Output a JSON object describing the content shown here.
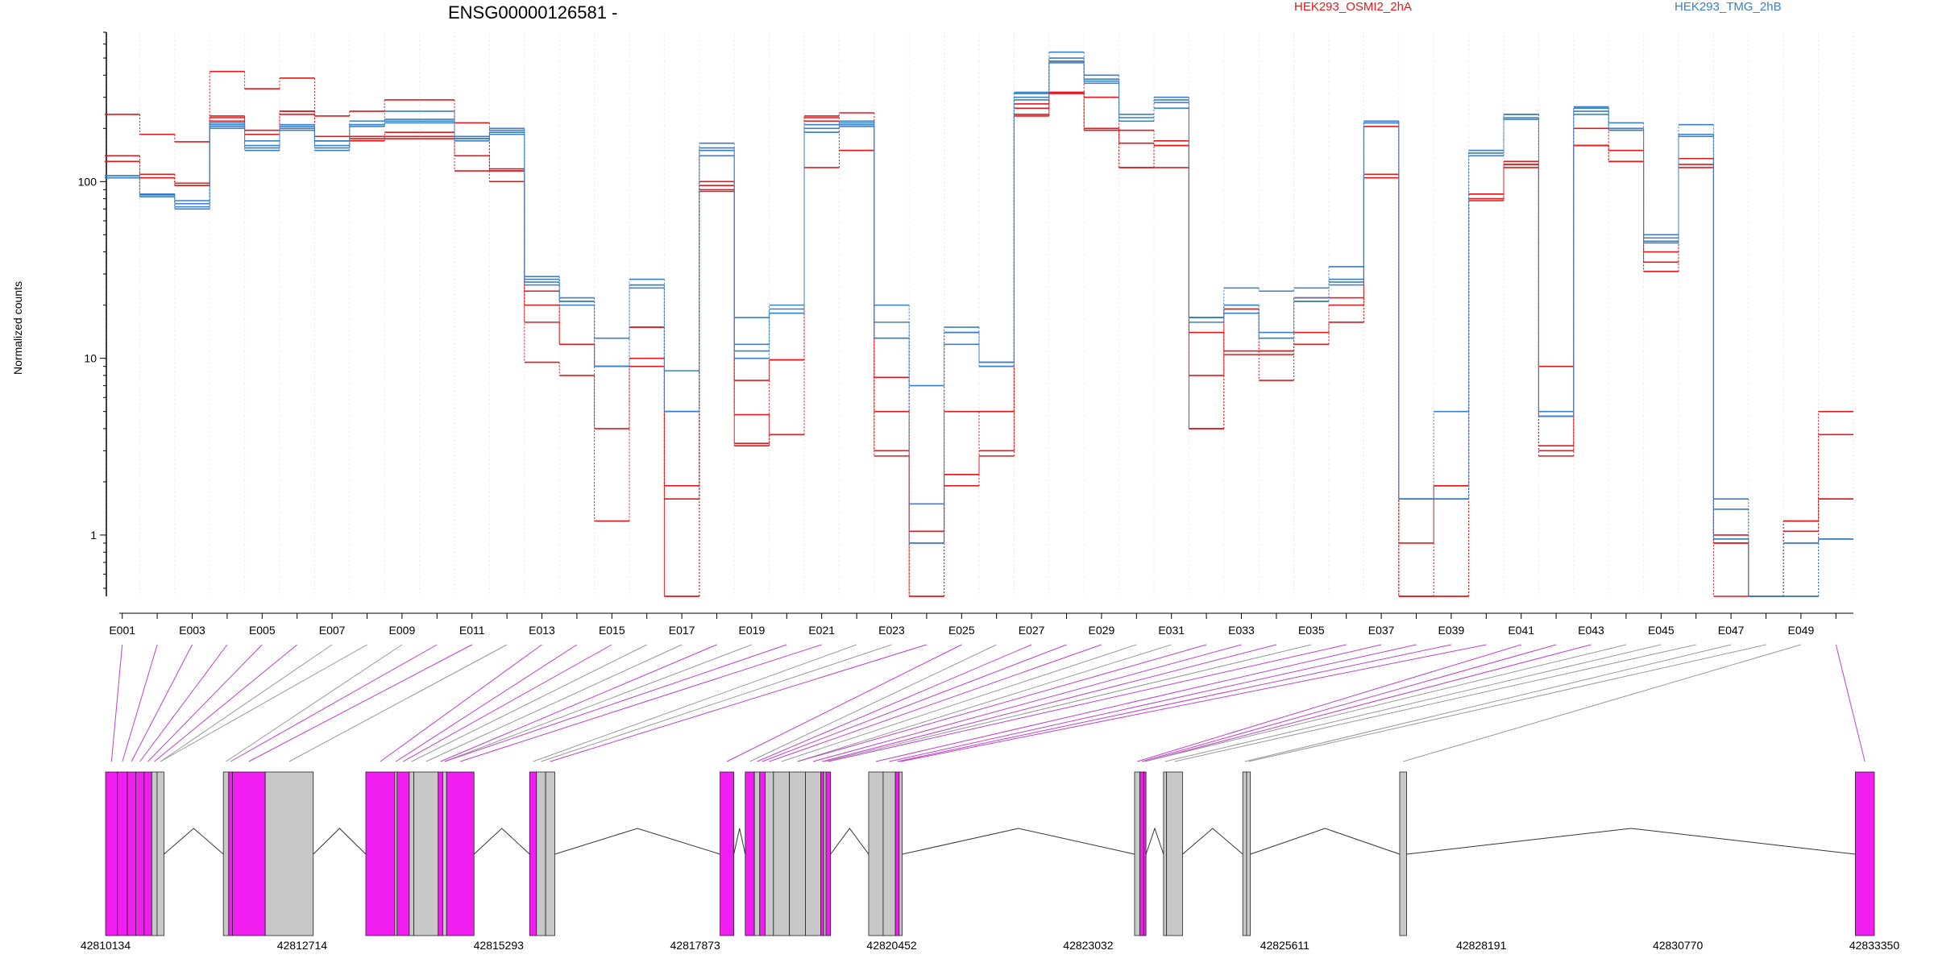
{
  "chart_data": {
    "type": "line",
    "title": "ENSG00000126581 -",
    "ylabel": "Normalized counts",
    "y_scale": "log",
    "ylim": [
      0.45,
      700
    ],
    "y_ticks": [
      1,
      10,
      100
    ],
    "y_tick_labels": [
      "1",
      "10",
      "100"
    ],
    "grid": "vertical, light dotted",
    "legend_placement": "top, horizontal",
    "colors": {
      "HEK293_OSMI2_2hA": "#e31a1c",
      "HEK293_TMG_2hB": "#3b7fc4",
      "included_exon": "#f01ef0",
      "other_exon": "#c8c8c8"
    },
    "legend": [
      {
        "name": "HEK293_OSMI2_2hA",
        "color": "#e31a1c"
      },
      {
        "name": "HEK293_TMG_2hB",
        "color": "#3b7fc4"
      }
    ],
    "x_labels": [
      "E001",
      "E003",
      "E005",
      "E007",
      "E009",
      "E011",
      "E013",
      "E015",
      "E017",
      "E019",
      "E021",
      "E023",
      "E025",
      "E027",
      "E029",
      "E031",
      "E033",
      "E035",
      "E037",
      "E039",
      "E041",
      "E043",
      "E045",
      "E047",
      "E049"
    ],
    "series": [
      {
        "group": "HEK293_OSMI2_2hA",
        "color": "#e31a1c",
        "values": [
          240,
          185,
          168,
          420,
          335,
          385,
          235,
          250,
          290,
          290,
          215,
          118,
          9.5,
          8,
          1.2,
          9,
          0.45,
          100,
          3.3,
          9.8,
          235,
          245,
          3,
          0.45,
          2.2,
          3,
          240,
          315,
          300,
          195,
          160,
          4,
          10.5,
          7.5,
          12,
          16,
          205,
          0.45,
          0.45,
          78,
          120,
          3,
          160,
          130,
          31,
          125,
          0.45,
          0.45,
          0.45,
          1.6
        ]
      },
      {
        "group": "HEK293_OSMI2_2hA",
        "color": "#e31a1c",
        "values": [
          140,
          110,
          98,
          235,
          195,
          250,
          170,
          180,
          180,
          180,
          140,
          115,
          16,
          12,
          4,
          10,
          0.45,
          95,
          7.5,
          9.8,
          120,
          150,
          5,
          1.05,
          2.2,
          5,
          275,
          320,
          200,
          165,
          120,
          14,
          11,
          10.5,
          14,
          20,
          110,
          0.9,
          1.9,
          85,
          125,
          3.2,
          200,
          150,
          35,
          135,
          0.9,
          0.45,
          1.2,
          1.6
        ]
      },
      {
        "group": "HEK293_OSMI2_2hA",
        "color": "#e31a1c",
        "values": [
          140,
          110,
          95,
          230,
          185,
          250,
          180,
          175,
          190,
          190,
          175,
          100,
          20,
          12,
          9,
          15,
          1.9,
          88,
          4.8,
          3.7,
          220,
          220,
          7.8,
          1.05,
          5,
          5,
          235,
          480,
          195,
          120,
          160,
          8,
          19,
          11,
          22,
          22,
          105,
          0.45,
          0.45,
          80,
          130,
          9,
          160,
          130,
          40,
          135,
          0.9,
          0.45,
          1.05,
          5
        ]
      },
      {
        "group": "HEK293_OSMI2_2hA",
        "color": "#e31a1c",
        "values": [
          130,
          105,
          95,
          220,
          185,
          240,
          170,
          170,
          175,
          175,
          115,
          115,
          24,
          12,
          9,
          15,
          1.6,
          90,
          3.2,
          3.7,
          230,
          150,
          2.8,
          0.45,
          1.9,
          2.8,
          260,
          320,
          195,
          120,
          170,
          4,
          19,
          11,
          12,
          16,
          110,
          0.45,
          1.9,
          85,
          125,
          2.8,
          160,
          130,
          31,
          120,
          1,
          0.45,
          1.2,
          3.7
        ]
      },
      {
        "group": "HEK293_TMG_2hB",
        "color": "#3b7fc4",
        "values": [
          105,
          85,
          70,
          210,
          170,
          210,
          170,
          220,
          250,
          250,
          180,
          200,
          29,
          21,
          13,
          28,
          5,
          165,
          17,
          20,
          190,
          220,
          20,
          7,
          15,
          9.5,
          320,
          540,
          400,
          220,
          260,
          17,
          25,
          24,
          25,
          33,
          215,
          1.6,
          5,
          150,
          240,
          5,
          260,
          215,
          50,
          210,
          1.6,
          0.45,
          0.45,
          0.95
        ]
      },
      {
        "group": "HEK293_TMG_2hB",
        "color": "#3b7fc4",
        "values": [
          108,
          85,
          75,
          215,
          160,
          205,
          160,
          210,
          225,
          225,
          180,
          195,
          27,
          22,
          9,
          26,
          8.5,
          155,
          11,
          19,
          210,
          215,
          16,
          1.5,
          12,
          9.5,
          315,
          480,
          380,
          240,
          300,
          17,
          20,
          14,
          22,
          28,
          220,
          1.6,
          1.6,
          145,
          225,
          4.7,
          265,
          200,
          45,
          185,
          1.4,
          0.45,
          0.45,
          0.95
        ]
      },
      {
        "group": "HEK293_TMG_2hB",
        "color": "#3b7fc4",
        "values": [
          108,
          82,
          78,
          205,
          155,
          200,
          155,
          210,
          220,
          220,
          170,
          190,
          28,
          21,
          9,
          25,
          5,
          140,
          10,
          18,
          190,
          210,
          13,
          0.9,
          14,
          9,
          300,
          470,
          360,
          220,
          280,
          16,
          18,
          13,
          21,
          26,
          215,
          1.6,
          1.6,
          140,
          240,
          4.7,
          240,
          195,
          48,
          180,
          0.95,
          0.45,
          0.9,
          0.95
        ]
      },
      {
        "group": "HEK293_TMG_2hB",
        "color": "#3b7fc4",
        "values": [
          105,
          84,
          72,
          200,
          150,
          195,
          150,
          205,
          215,
          215,
          175,
          185,
          26,
          20,
          9,
          26,
          5,
          150,
          12,
          18,
          200,
          205,
          13,
          0.9,
          14,
          9,
          290,
          500,
          370,
          230,
          290,
          17,
          20,
          13,
          21,
          27,
          220,
          1.6,
          1.6,
          150,
          230,
          4.7,
          250,
          200,
          46,
          185,
          0.95,
          0.45,
          0.9,
          0.95
        ]
      }
    ],
    "gene_model": {
      "coord_labels": [
        "42810134",
        "42812714",
        "42815293",
        "42817873",
        "42820452",
        "42823032",
        "42825611",
        "42828191",
        "42830770",
        "42833350"
      ],
      "coord_min": 42810134,
      "coord_max": 42833350,
      "exons": [
        {
          "start": 42810134,
          "end": 42810290,
          "included": true
        },
        {
          "start": 42810290,
          "end": 42810420,
          "included": true
        },
        {
          "start": 42810420,
          "end": 42810530,
          "included": true
        },
        {
          "start": 42810530,
          "end": 42810640,
          "included": true
        },
        {
          "start": 42810640,
          "end": 42810740,
          "included": true
        },
        {
          "start": 42810740,
          "end": 42810810,
          "included": false
        },
        {
          "start": 42810810,
          "end": 42810900,
          "included": false
        },
        {
          "start": 42811680,
          "end": 42811750,
          "included": false
        },
        {
          "start": 42811750,
          "end": 42811800,
          "included": true
        },
        {
          "start": 42811800,
          "end": 42812230,
          "included": true
        },
        {
          "start": 42812230,
          "end": 42812860,
          "included": false
        },
        {
          "start": 42813550,
          "end": 42813930,
          "included": true
        },
        {
          "start": 42813930,
          "end": 42813960,
          "included": false
        },
        {
          "start": 42813960,
          "end": 42814120,
          "included": true
        },
        {
          "start": 42814120,
          "end": 42814180,
          "included": false
        },
        {
          "start": 42814180,
          "end": 42814500,
          "included": false
        },
        {
          "start": 42814500,
          "end": 42814560,
          "included": true
        },
        {
          "start": 42814560,
          "end": 42814610,
          "included": false
        },
        {
          "start": 42814610,
          "end": 42814970,
          "included": true
        },
        {
          "start": 42815700,
          "end": 42815790,
          "included": true
        },
        {
          "start": 42815790,
          "end": 42815910,
          "included": false
        },
        {
          "start": 42815910,
          "end": 42816030,
          "included": false
        },
        {
          "start": 42818200,
          "end": 42818380,
          "included": true
        },
        {
          "start": 42818530,
          "end": 42818650,
          "included": true
        },
        {
          "start": 42818650,
          "end": 42818720,
          "included": false
        },
        {
          "start": 42818720,
          "end": 42818790,
          "included": true
        },
        {
          "start": 42818790,
          "end": 42818900,
          "included": false
        },
        {
          "start": 42818900,
          "end": 42819110,
          "included": false
        },
        {
          "start": 42819110,
          "end": 42819320,
          "included": false
        },
        {
          "start": 42819320,
          "end": 42819520,
          "included": false
        },
        {
          "start": 42819520,
          "end": 42819560,
          "included": true
        },
        {
          "start": 42819560,
          "end": 42819590,
          "included": false
        },
        {
          "start": 42819590,
          "end": 42819650,
          "included": true
        },
        {
          "start": 42820150,
          "end": 42820340,
          "included": false
        },
        {
          "start": 42820340,
          "end": 42820500,
          "included": false
        },
        {
          "start": 42820500,
          "end": 42820550,
          "included": true
        },
        {
          "start": 42820550,
          "end": 42820590,
          "included": false
        },
        {
          "start": 42823640,
          "end": 42823710,
          "included": false
        },
        {
          "start": 42823710,
          "end": 42823760,
          "included": true
        },
        {
          "start": 42823760,
          "end": 42823790,
          "included": true
        },
        {
          "start": 42824020,
          "end": 42824060,
          "included": false
        },
        {
          "start": 42824060,
          "end": 42824270,
          "included": false
        },
        {
          "start": 42825060,
          "end": 42825110,
          "included": false
        },
        {
          "start": 42825110,
          "end": 42825160,
          "included": false
        },
        {
          "start": 42827120,
          "end": 42827210,
          "included": false
        },
        {
          "start": 42833100,
          "end": 42833350,
          "included": true
        }
      ],
      "exon_to_bin_links": [
        {
          "bin": 1,
          "included": true
        },
        {
          "bin": 2,
          "included": true
        },
        {
          "bin": 3,
          "included": true
        },
        {
          "bin": 4,
          "included": true
        },
        {
          "bin": 5,
          "included": true
        },
        {
          "bin": 6,
          "included": true
        },
        {
          "bin": 7,
          "included": false
        },
        {
          "bin": 8,
          "included": false
        },
        {
          "bin": 9,
          "included": false
        },
        {
          "bin": 10,
          "included": true
        },
        {
          "bin": 11,
          "included": true
        },
        {
          "bin": 12,
          "included": false
        },
        {
          "bin": 13,
          "included": true
        },
        {
          "bin": 14,
          "included": true
        },
        {
          "bin": 15,
          "included": true
        },
        {
          "bin": 16,
          "included": false
        },
        {
          "bin": 17,
          "included": false
        },
        {
          "bin": 18,
          "included": true
        },
        {
          "bin": 19,
          "included": false
        },
        {
          "bin": 20,
          "included": true
        },
        {
          "bin": 21,
          "included": true
        },
        {
          "bin": 22,
          "included": false
        },
        {
          "bin": 23,
          "included": false
        },
        {
          "bin": 24,
          "included": true
        },
        {
          "bin": 25,
          "included": true
        },
        {
          "bin": 26,
          "included": false
        },
        {
          "bin": 27,
          "included": true
        },
        {
          "bin": 28,
          "included": true
        },
        {
          "bin": 29,
          "included": true
        },
        {
          "bin": 30,
          "included": false
        },
        {
          "bin": 31,
          "included": false
        },
        {
          "bin": 32,
          "included": true
        },
        {
          "bin": 33,
          "included": true
        },
        {
          "bin": 34,
          "included": true
        },
        {
          "bin": 35,
          "included": false
        },
        {
          "bin": 36,
          "included": true
        },
        {
          "bin": 37,
          "included": true
        },
        {
          "bin": 38,
          "included": true
        },
        {
          "bin": 39,
          "included": true
        },
        {
          "bin": 40,
          "included": true
        },
        {
          "bin": 41,
          "included": true
        },
        {
          "bin": 42,
          "included": true
        },
        {
          "bin": 43,
          "included": true
        },
        {
          "bin": 44,
          "included": false
        },
        {
          "bin": 45,
          "included": false
        },
        {
          "bin": 46,
          "included": false
        },
        {
          "bin": 47,
          "included": false
        },
        {
          "bin": 48,
          "included": false
        },
        {
          "bin": 49,
          "included": false
        },
        {
          "bin": 50,
          "included": true
        }
      ]
    }
  }
}
